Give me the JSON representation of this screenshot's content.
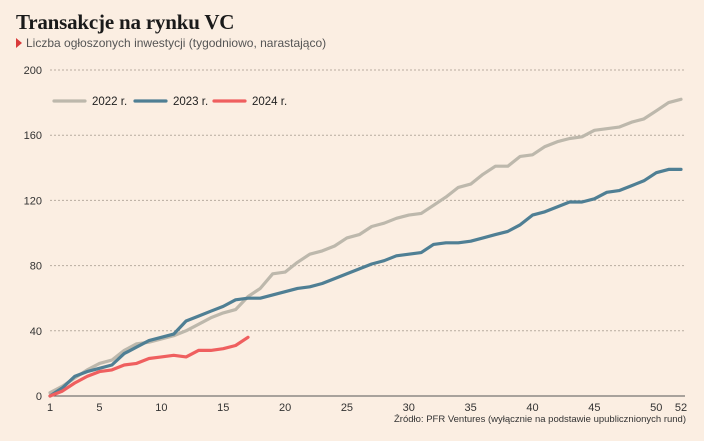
{
  "title": "Transakcje na rynku VC",
  "subtitle": "Liczba ogłoszonych inwestycji (tygodniowo, narastająco)",
  "source": "Źródło: PFR Ventures (wyłącznie na podstawie upublicznionych rund)",
  "colors": {
    "2022 r.": "#bdb8ac",
    "2023 r.": "#4f7f94",
    "2024 r.": "#ef5f5f",
    "subtitle_marker": "#d93a3a"
  },
  "chart_data": {
    "type": "line",
    "title": "Transakcje na rynku VC",
    "subtitle": "Liczba ogłoszonych inwestycji (tygodniowo, narastająco)",
    "xlabel": "",
    "ylabel": "",
    "xlim": [
      1,
      52
    ],
    "ylim": [
      0,
      200
    ],
    "x_ticks": [
      1,
      5,
      10,
      15,
      20,
      25,
      30,
      35,
      40,
      45,
      50,
      52
    ],
    "y_ticks": [
      0,
      40,
      80,
      120,
      160,
      200
    ],
    "grid": "horizontal dashed",
    "legend_position": "top-left",
    "series": [
      {
        "name": "2022 r.",
        "x": [
          1,
          2,
          3,
          4,
          5,
          6,
          7,
          8,
          9,
          10,
          11,
          12,
          13,
          14,
          15,
          16,
          17,
          18,
          19,
          20,
          21,
          22,
          23,
          24,
          25,
          26,
          27,
          28,
          29,
          30,
          31,
          32,
          33,
          34,
          35,
          36,
          37,
          38,
          39,
          40,
          41,
          42,
          43,
          44,
          45,
          46,
          47,
          48,
          49,
          50,
          51,
          52
        ],
        "values": [
          2,
          6,
          11,
          16,
          20,
          22,
          28,
          32,
          33,
          35,
          37,
          40,
          44,
          48,
          51,
          53,
          61,
          66,
          75,
          76,
          82,
          87,
          89,
          92,
          97,
          99,
          104,
          106,
          109,
          111,
          112,
          117,
          122,
          128,
          130,
          136,
          141,
          141,
          147,
          148,
          153,
          156,
          158,
          159,
          163,
          164,
          165,
          168,
          170,
          175,
          180,
          182
        ]
      },
      {
        "name": "2023 r.",
        "x": [
          1,
          2,
          3,
          4,
          5,
          6,
          7,
          8,
          9,
          10,
          11,
          12,
          13,
          14,
          15,
          16,
          17,
          18,
          19,
          20,
          21,
          22,
          23,
          24,
          25,
          26,
          27,
          28,
          29,
          30,
          31,
          32,
          33,
          34,
          35,
          36,
          37,
          38,
          39,
          40,
          41,
          42,
          43,
          44,
          45,
          46,
          47,
          48,
          49,
          50,
          51,
          52
        ],
        "values": [
          0,
          5,
          12,
          15,
          17,
          19,
          26,
          30,
          34,
          36,
          38,
          46,
          49,
          52,
          55,
          59,
          60,
          60,
          62,
          64,
          66,
          67,
          69,
          72,
          75,
          78,
          81,
          83,
          86,
          87,
          88,
          93,
          94,
          94,
          95,
          97,
          99,
          101,
          105,
          111,
          113,
          116,
          119,
          119,
          121,
          125,
          126,
          129,
          132,
          137,
          139,
          139
        ]
      },
      {
        "name": "2024 r.",
        "x": [
          1,
          2,
          3,
          4,
          5,
          6,
          7,
          8,
          9,
          10,
          11,
          12,
          13,
          14,
          15,
          16,
          17
        ],
        "values": [
          0,
          3,
          8,
          12,
          15,
          16,
          19,
          20,
          23,
          24,
          25,
          24,
          28,
          28,
          29,
          31,
          36
        ]
      }
    ]
  }
}
